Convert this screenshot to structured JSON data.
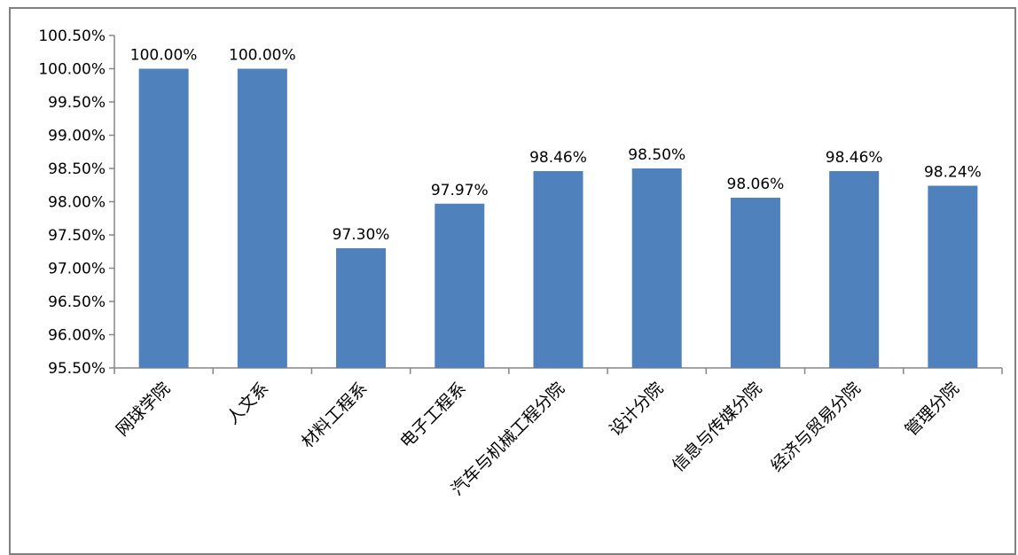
{
  "chart_data": {
    "type": "bar",
    "categories": [
      "网球学院",
      "人文系",
      "材料工程系",
      "电子工程系",
      "汽车与机械工程分院",
      "设计分院",
      "信息与传媒分院",
      "经济与贸易分院",
      "管理分院"
    ],
    "values": [
      100.0,
      100.0,
      97.3,
      97.97,
      98.46,
      98.5,
      98.06,
      98.46,
      98.24
    ],
    "data_labels": [
      "100.00%",
      "100.00%",
      "97.30%",
      "97.97%",
      "98.46%",
      "98.50%",
      "98.06%",
      "98.46%",
      "98.24%"
    ],
    "ylim": [
      95.5,
      100.5
    ],
    "ytick_step": 0.5,
    "ytick_labels": [
      "95.50%",
      "96.00%",
      "96.50%",
      "97.00%",
      "97.50%",
      "98.00%",
      "98.50%",
      "99.00%",
      "99.50%",
      "100.00%",
      "100.50%"
    ],
    "title": "",
    "xlabel": "",
    "ylabel": "",
    "grid": false,
    "legend": "none",
    "bar_color": "#4f81bd"
  }
}
